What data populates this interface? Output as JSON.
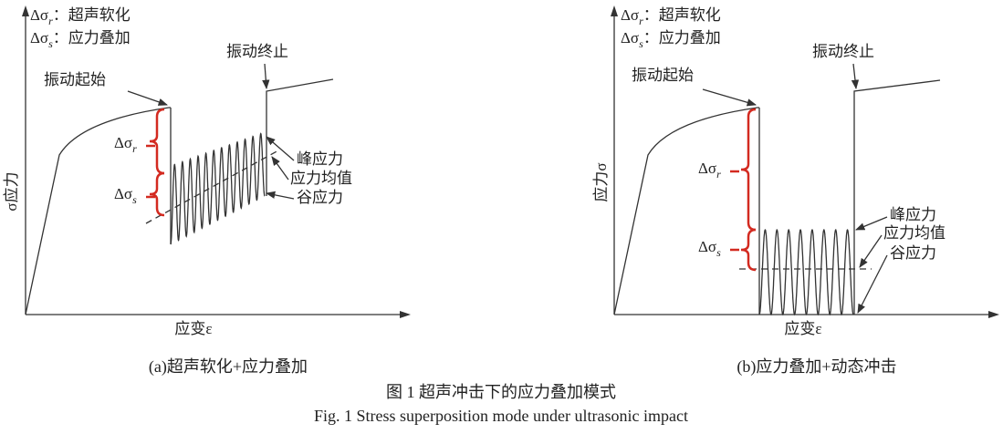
{
  "panels": [
    {
      "legend": [
        {
          "symbol": "Δσ",
          "sub": "r",
          "sep": "：",
          "text": "超声软化"
        },
        {
          "symbol": "Δσ",
          "sub": "s",
          "sep": "：",
          "text": "应力叠加"
        }
      ],
      "start_label": "振动起始",
      "end_label": "振动终止",
      "peak_label": "峰应力",
      "mean_label": "应力均值",
      "valley_label": "谷应力",
      "brace_labels": [
        {
          "symbol": "Δσ",
          "sub": "r"
        },
        {
          "symbol": "Δσ",
          "sub": "s"
        }
      ],
      "y_label": "σ应力",
      "x_label": "应变ε",
      "caption": "(a)超声软化+应力叠加"
    },
    {
      "legend": [
        {
          "symbol": "Δσ",
          "sub": "r",
          "sep": "：",
          "text": "超声软化"
        },
        {
          "symbol": "Δσ",
          "sub": "s",
          "sep": "：",
          "text": "应力叠加"
        }
      ],
      "start_label": "振动起始",
      "end_label": "振动终止",
      "peak_label": "峰应力",
      "mean_label": "应力均值",
      "valley_label": "谷应力",
      "brace_labels": [
        {
          "symbol": "Δσ",
          "sub": "r"
        },
        {
          "symbol": "Δσ",
          "sub": "s"
        }
      ],
      "y_label": "应力σ",
      "x_label": "应变ε",
      "caption": "(b)应力叠加+动态冲击"
    }
  ],
  "figure_caption_cn": "图 1  超声冲击下的应力叠加模式",
  "figure_caption_en": "Fig. 1 Stress superposition mode under ultrasonic impact"
}
